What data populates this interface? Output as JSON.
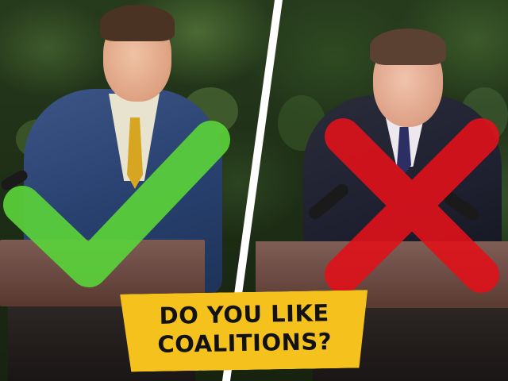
{
  "banner": {
    "line1": "DO YOU LIKE",
    "line2": "COALITIONS?",
    "background_color": "#f5c21d",
    "text_color": "#121212"
  },
  "marks": {
    "left": {
      "icon": "check-icon",
      "color": "#5ad13a"
    },
    "right": {
      "icon": "cross-icon",
      "color": "#e0111a"
    }
  },
  "divider": {
    "color": "#ffffff"
  }
}
